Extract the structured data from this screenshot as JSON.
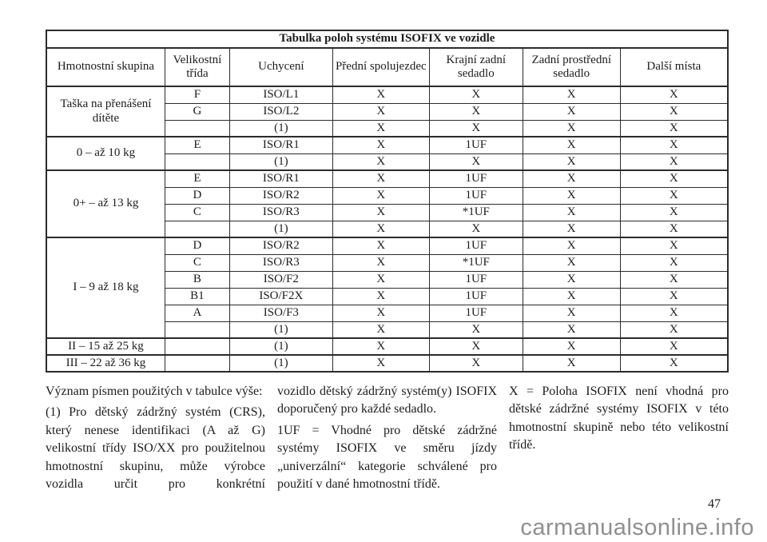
{
  "table": {
    "title": "Tabulka poloh systému ISOFIX ve vozidle",
    "columns": [
      "Hmotnostní skupina",
      "Velikostní třída",
      "Uchycení",
      "Přední spolujezdec",
      "Krajní zadní sedadlo",
      "Zadní prostřední sedadlo",
      "Další místa"
    ],
    "groups": [
      {
        "label": "Taška na přenášení dítěte",
        "rows": [
          [
            "F",
            "ISO/L1",
            "X",
            "X",
            "X",
            "X"
          ],
          [
            "G",
            "ISO/L2",
            "X",
            "X",
            "X",
            "X"
          ],
          [
            "",
            "(1)",
            "X",
            "X",
            "X",
            "X"
          ]
        ]
      },
      {
        "label": "0 – až 10 kg",
        "rows": [
          [
            "E",
            "ISO/R1",
            "X",
            "1UF",
            "X",
            "X"
          ],
          [
            "",
            "(1)",
            "X",
            "X",
            "X",
            "X"
          ]
        ]
      },
      {
        "label": "0+ – až 13 kg",
        "rows": [
          [
            "E",
            "ISO/R1",
            "X",
            "1UF",
            "X",
            "X"
          ],
          [
            "D",
            "ISO/R2",
            "X",
            "1UF",
            "X",
            "X"
          ],
          [
            "C",
            "ISO/R3",
            "X",
            "*1UF",
            "X",
            "X"
          ],
          [
            "",
            "(1)",
            "X",
            "X",
            "X",
            "X"
          ]
        ]
      },
      {
        "label": "I – 9 až 18 kg",
        "rows": [
          [
            "D",
            "ISO/R2",
            "X",
            "1UF",
            "X",
            "X"
          ],
          [
            "C",
            "ISO/R3",
            "X",
            "*1UF",
            "X",
            "X"
          ],
          [
            "B",
            "ISO/F2",
            "X",
            "1UF",
            "X",
            "X"
          ],
          [
            "B1",
            "ISO/F2X",
            "X",
            "1UF",
            "X",
            "X"
          ],
          [
            "A",
            "ISO/F3",
            "X",
            "1UF",
            "X",
            "X"
          ],
          [
            "",
            "(1)",
            "X",
            "X",
            "X",
            "X"
          ]
        ]
      },
      {
        "label": "II – 15 až 25 kg",
        "rows": [
          [
            "",
            "(1)",
            "X",
            "X",
            "X",
            "X"
          ]
        ]
      },
      {
        "label": "III – 22 až 36 kg",
        "rows": [
          [
            "",
            "(1)",
            "X",
            "X",
            "X",
            "X"
          ]
        ]
      }
    ]
  },
  "notes": {
    "columns": [
      {
        "paragraphs": [
          {
            "text": "Význam písmen použitých v tabulce výše:",
            "continues": false
          },
          {
            "text": "(1) Pro dětský zádržný systém (CRS), který nenese identifikaci (A až G) velikostní třídy ISO/XX pro použitelnou hmotnostní skupinu, může výrobce vozidla určit pro konkrétní",
            "continues": true
          }
        ]
      },
      {
        "paragraphs": [
          {
            "text": "vozidlo dětský zádržný systém(y) ISOFIX doporučený pro každé sedadlo.",
            "continues": false
          },
          {
            "text": "1UF = Vhodné pro dětské zádržné systémy ISOFIX ve směru jízdy „univerzální“ kategorie schválené pro použití v dané hmotnostní třídě.",
            "continues": false
          }
        ]
      },
      {
        "paragraphs": [
          {
            "text": "X = Poloha ISOFIX není vhodná pro dětské zádržné systémy ISOFIX v této hmotnostní skupině nebo této velikostní třídě.",
            "continues": false
          }
        ]
      }
    ]
  },
  "footer": {
    "page_number": "47",
    "watermark": "carmanualsonline.info"
  }
}
